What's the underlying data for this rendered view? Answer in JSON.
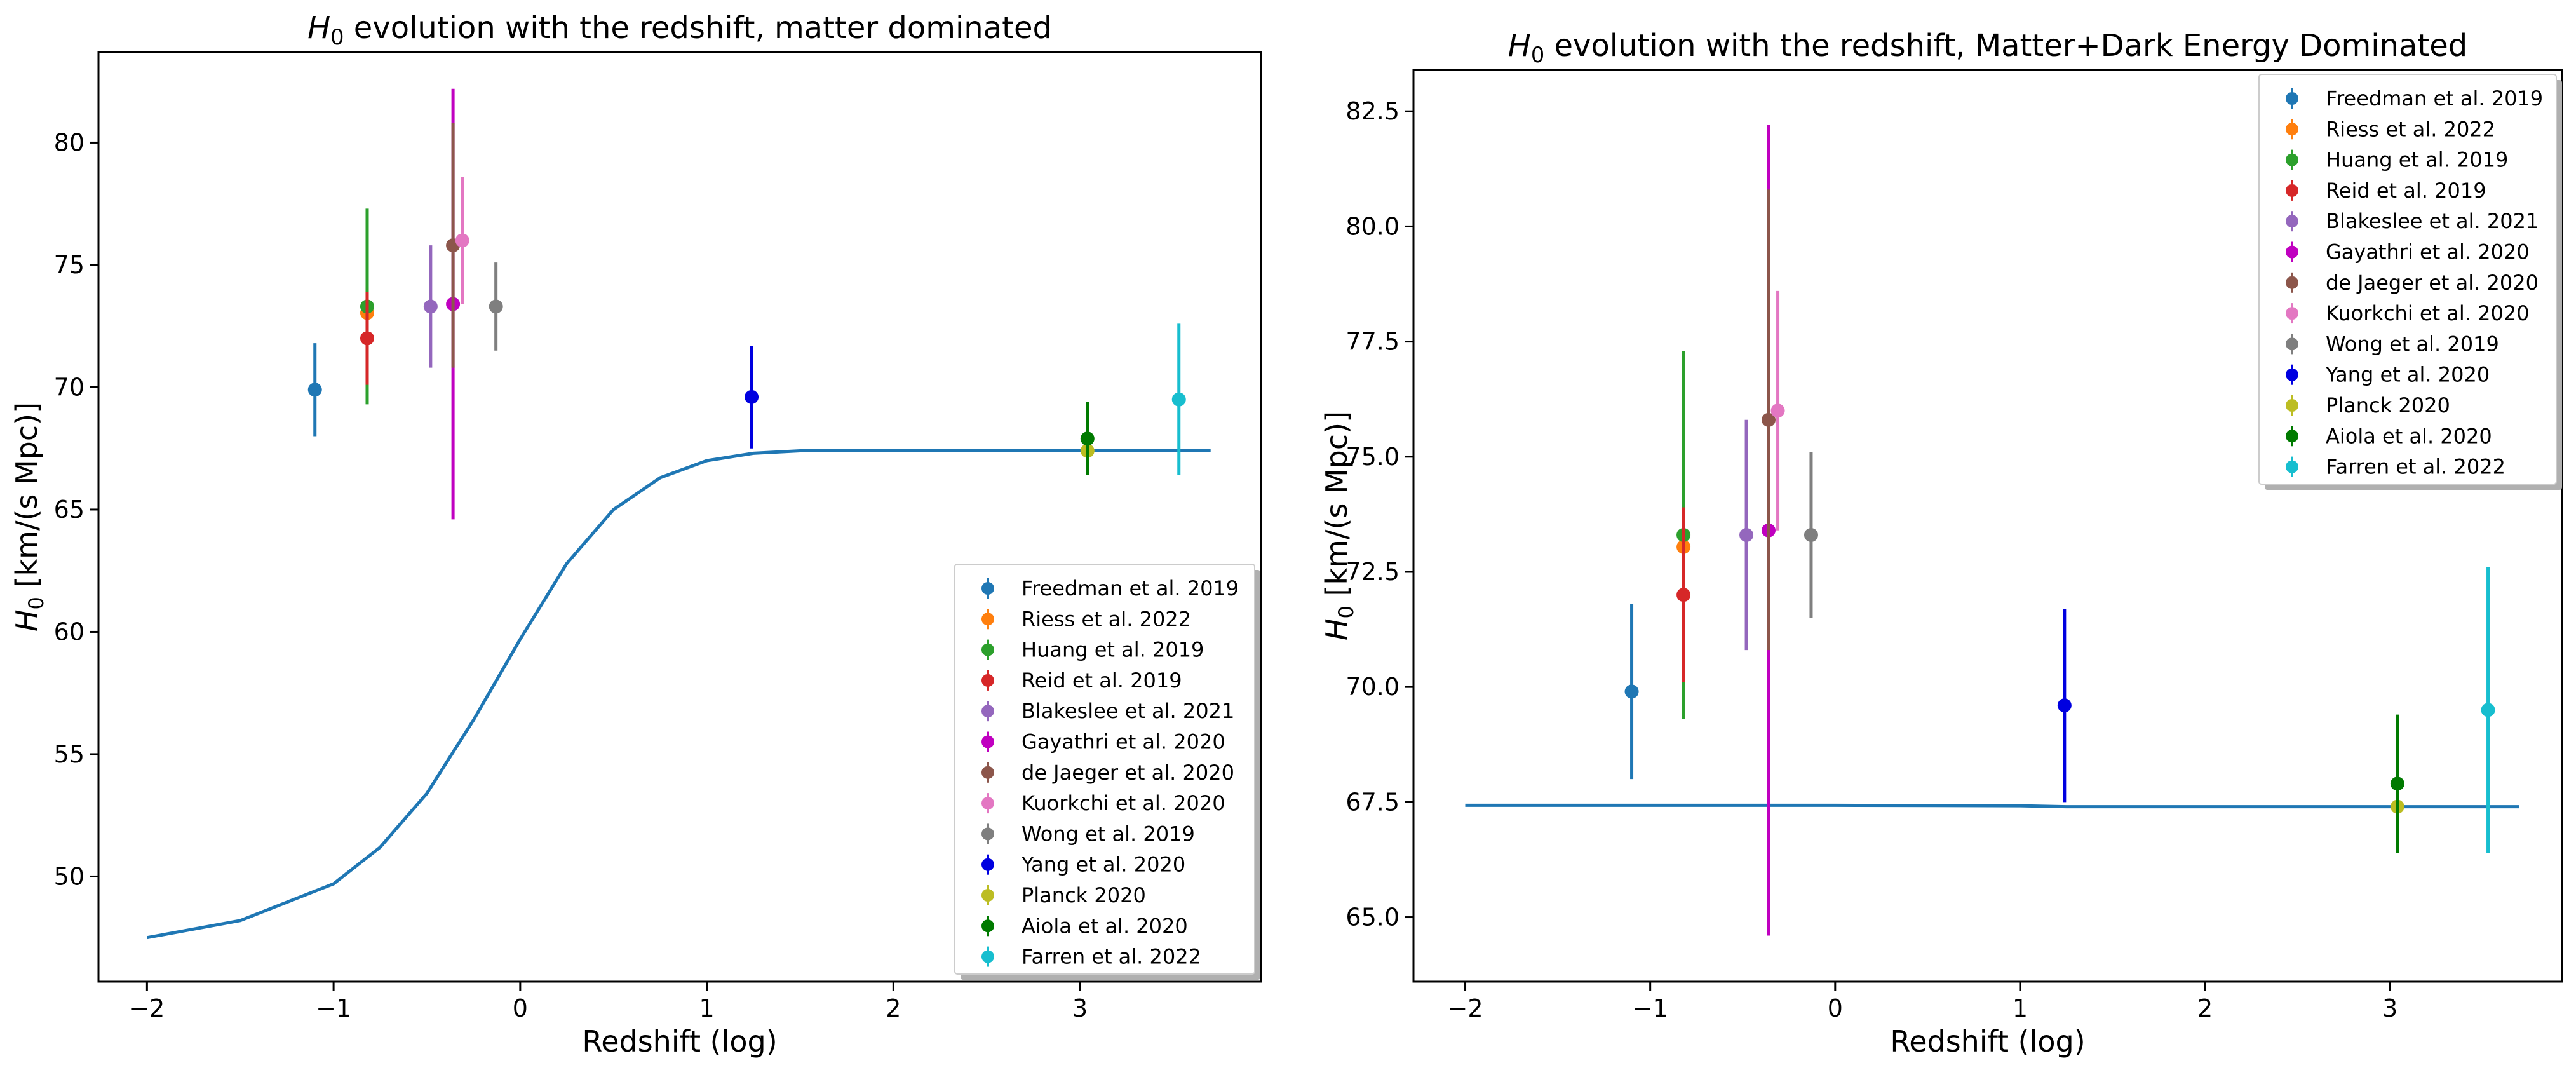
{
  "chart_data": [
    {
      "type": "scatter",
      "title_main": "H",
      "title_sub": "0",
      "title_rest": " evolution with the redshift, matter dominated",
      "xlabel": "Redshift (log)",
      "ylabel_main": "H",
      "ylabel_sub": "0",
      "ylabel_rest": " [km/(s Mpc)]",
      "xlim": [
        -2.26,
        3.97
      ],
      "ylim": [
        45.7,
        83.7
      ],
      "xticks": [
        -2,
        -1,
        0,
        1,
        2,
        3
      ],
      "xtick_labels": [
        "−2",
        "−1",
        "0",
        "1",
        "2",
        "3"
      ],
      "yticks": [
        50,
        55,
        60,
        65,
        70,
        75,
        80
      ],
      "ytick_labels": [
        "50",
        "55",
        "60",
        "65",
        "70",
        "75",
        "80"
      ],
      "legend_position": "lower right",
      "model_curve": {
        "name": "model",
        "color": "#1f77b4",
        "x": [
          -2.0,
          -1.5,
          -1.0,
          -0.75,
          -0.5,
          -0.25,
          0.0,
          0.25,
          0.5,
          0.75,
          1.0,
          1.25,
          1.5,
          2.0,
          2.5,
          3.0,
          3.7
        ],
        "y": [
          47.5,
          48.2,
          49.7,
          51.2,
          53.4,
          56.4,
          59.7,
          62.8,
          65.0,
          66.3,
          67.0,
          67.3,
          67.4,
          67.4,
          67.4,
          67.4,
          67.4
        ]
      },
      "series": [
        {
          "name": "Freedman et al. 2019",
          "color": "#1f77b4",
          "x": -1.1,
          "y": 69.9,
          "err": 1.9
        },
        {
          "name": "Riess et al. 2022",
          "color": "#ff7f0e",
          "x": -0.82,
          "y": 73.04,
          "err": 1.04
        },
        {
          "name": "Huang et al. 2019",
          "color": "#2ca02c",
          "x": -0.82,
          "y": 73.3,
          "err": 4.0
        },
        {
          "name": "Reid et al. 2019",
          "color": "#d62728",
          "x": -0.82,
          "y": 72.0,
          "err": 1.9
        },
        {
          "name": "Blakeslee et al. 2021",
          "color": "#9467bd",
          "x": -0.48,
          "y": 73.3,
          "err": 2.5
        },
        {
          "name": "Gayathri et al. 2020",
          "color": "#c000c0",
          "x": -0.36,
          "y": 73.4,
          "err": 8.8
        },
        {
          "name": "de Jaeger et al. 2020",
          "color": "#8c564b",
          "x": -0.36,
          "y": 75.8,
          "err": 5.0
        },
        {
          "name": "Kuorkchi et al. 2020",
          "color": "#e377c2",
          "x": -0.31,
          "y": 76.0,
          "err": 2.6
        },
        {
          "name": "Wong et al. 2019",
          "color": "#7f7f7f",
          "x": -0.13,
          "y": 73.3,
          "err": 1.8
        },
        {
          "name": "Yang et al. 2020",
          "color": "#0000e0",
          "x": 1.24,
          "y": 69.6,
          "err": 2.1
        },
        {
          "name": "Planck 2020",
          "color": "#bcbd22",
          "x": 3.04,
          "y": 67.4,
          "err": 0.5
        },
        {
          "name": "Aiola et al. 2020",
          "color": "#007a00",
          "x": 3.04,
          "y": 67.9,
          "err": 1.5
        },
        {
          "name": "Farren et al. 2022",
          "color": "#17becf",
          "x": 3.53,
          "y": 69.5,
          "err": 3.1
        }
      ]
    },
    {
      "type": "scatter",
      "title_main": "H",
      "title_sub": "0",
      "title_rest": " evolution with the redshift, Matter+Dark Energy Dominated",
      "xlabel": "Redshift (log)",
      "ylabel_main": "H",
      "ylabel_sub": "0",
      "ylabel_rest": " [km/(s Mpc)]",
      "xlim": [
        -2.28,
        3.93
      ],
      "ylim": [
        63.6,
        83.4
      ],
      "xticks": [
        -2,
        -1,
        0,
        1,
        2,
        3
      ],
      "xtick_labels": [
        "−2",
        "−1",
        "0",
        "1",
        "2",
        "3"
      ],
      "yticks": [
        65.0,
        67.5,
        70.0,
        72.5,
        75.0,
        77.5,
        80.0,
        82.5
      ],
      "ytick_labels": [
        "65.0",
        "67.5",
        "70.0",
        "72.5",
        "75.0",
        "77.5",
        "80.0",
        "82.5"
      ],
      "legend_position": "upper right",
      "model_curve": {
        "name": "model",
        "color": "#1f77b4",
        "x": [
          -2.0,
          -1.0,
          0.0,
          1.0,
          1.25,
          2.0,
          3.0,
          3.7
        ],
        "y": [
          67.43,
          67.43,
          67.43,
          67.42,
          67.4,
          67.4,
          67.4,
          67.4
        ]
      },
      "series": [
        {
          "name": "Freedman et al. 2019",
          "color": "#1f77b4",
          "x": -1.1,
          "y": 69.9,
          "err": 1.9
        },
        {
          "name": "Riess et al. 2022",
          "color": "#ff7f0e",
          "x": -0.82,
          "y": 73.04,
          "err": 1.04
        },
        {
          "name": "Huang et al. 2019",
          "color": "#2ca02c",
          "x": -0.82,
          "y": 73.3,
          "err": 4.0
        },
        {
          "name": "Reid et al. 2019",
          "color": "#d62728",
          "x": -0.82,
          "y": 72.0,
          "err": 1.9
        },
        {
          "name": "Blakeslee et al. 2021",
          "color": "#9467bd",
          "x": -0.48,
          "y": 73.3,
          "err": 2.5
        },
        {
          "name": "Gayathri et al. 2020",
          "color": "#c000c0",
          "x": -0.36,
          "y": 73.4,
          "err": 8.8
        },
        {
          "name": "de Jaeger et al. 2020",
          "color": "#8c564b",
          "x": -0.36,
          "y": 75.8,
          "err": 5.0
        },
        {
          "name": "Kuorkchi et al. 2020",
          "color": "#e377c2",
          "x": -0.31,
          "y": 76.0,
          "err": 2.6
        },
        {
          "name": "Wong et al. 2019",
          "color": "#7f7f7f",
          "x": -0.13,
          "y": 73.3,
          "err": 1.8
        },
        {
          "name": "Yang et al. 2020",
          "color": "#0000e0",
          "x": 1.24,
          "y": 69.6,
          "err": 2.1
        },
        {
          "name": "Planck 2020",
          "color": "#bcbd22",
          "x": 3.04,
          "y": 67.4,
          "err": 0.5
        },
        {
          "name": "Aiola et al. 2020",
          "color": "#007a00",
          "x": 3.04,
          "y": 67.9,
          "err": 1.5
        },
        {
          "name": "Farren et al. 2022",
          "color": "#17becf",
          "x": 3.53,
          "y": 69.5,
          "err": 3.1
        }
      ]
    }
  ]
}
